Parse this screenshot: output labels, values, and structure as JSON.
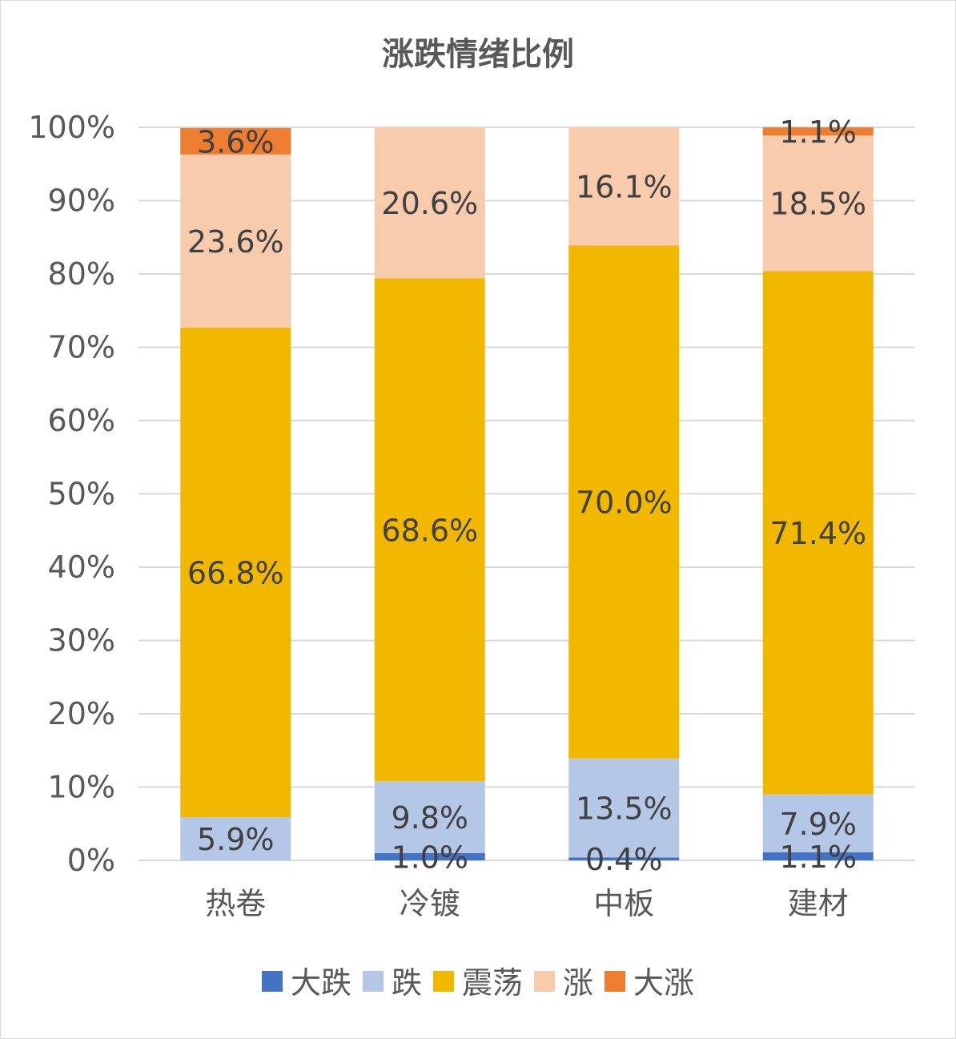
{
  "chart_data": {
    "type": "bar",
    "stacked": true,
    "percent_stacked": true,
    "title": "涨跌情绪比例",
    "categories": [
      "热卷",
      "冷镀",
      "中板",
      "建材"
    ],
    "series": [
      {
        "name": "大跌",
        "color": "#4472C4",
        "values": [
          0.0,
          1.0,
          0.4,
          1.1
        ],
        "labels": [
          "",
          "1.0%",
          "0.4%",
          "1.1%"
        ]
      },
      {
        "name": "跌",
        "color": "#B4C7E7",
        "values": [
          5.9,
          9.8,
          13.5,
          7.9
        ],
        "labels": [
          "5.9%",
          "9.8%",
          "13.5%",
          "7.9%"
        ]
      },
      {
        "name": "震荡",
        "color": "#F2B800",
        "values": [
          66.8,
          68.6,
          70.0,
          71.4
        ],
        "labels": [
          "66.8%",
          "68.6%",
          "70.0%",
          "71.4%"
        ]
      },
      {
        "name": "涨",
        "color": "#F8CBAD",
        "values": [
          23.6,
          20.6,
          16.1,
          18.5
        ],
        "labels": [
          "23.6%",
          "20.6%",
          "16.1%",
          "18.5%"
        ]
      },
      {
        "name": "大涨",
        "color": "#ED7D31",
        "values": [
          3.6,
          0.0,
          0.0,
          1.1
        ],
        "labels": [
          "3.6%",
          "",
          "",
          "1.1%"
        ]
      }
    ],
    "ylim": [
      0,
      100
    ],
    "yticks": [
      "0%",
      "10%",
      "20%",
      "30%",
      "40%",
      "50%",
      "60%",
      "70%",
      "80%",
      "90%",
      "100%"
    ],
    "grid": true,
    "legend_position": "bottom"
  }
}
